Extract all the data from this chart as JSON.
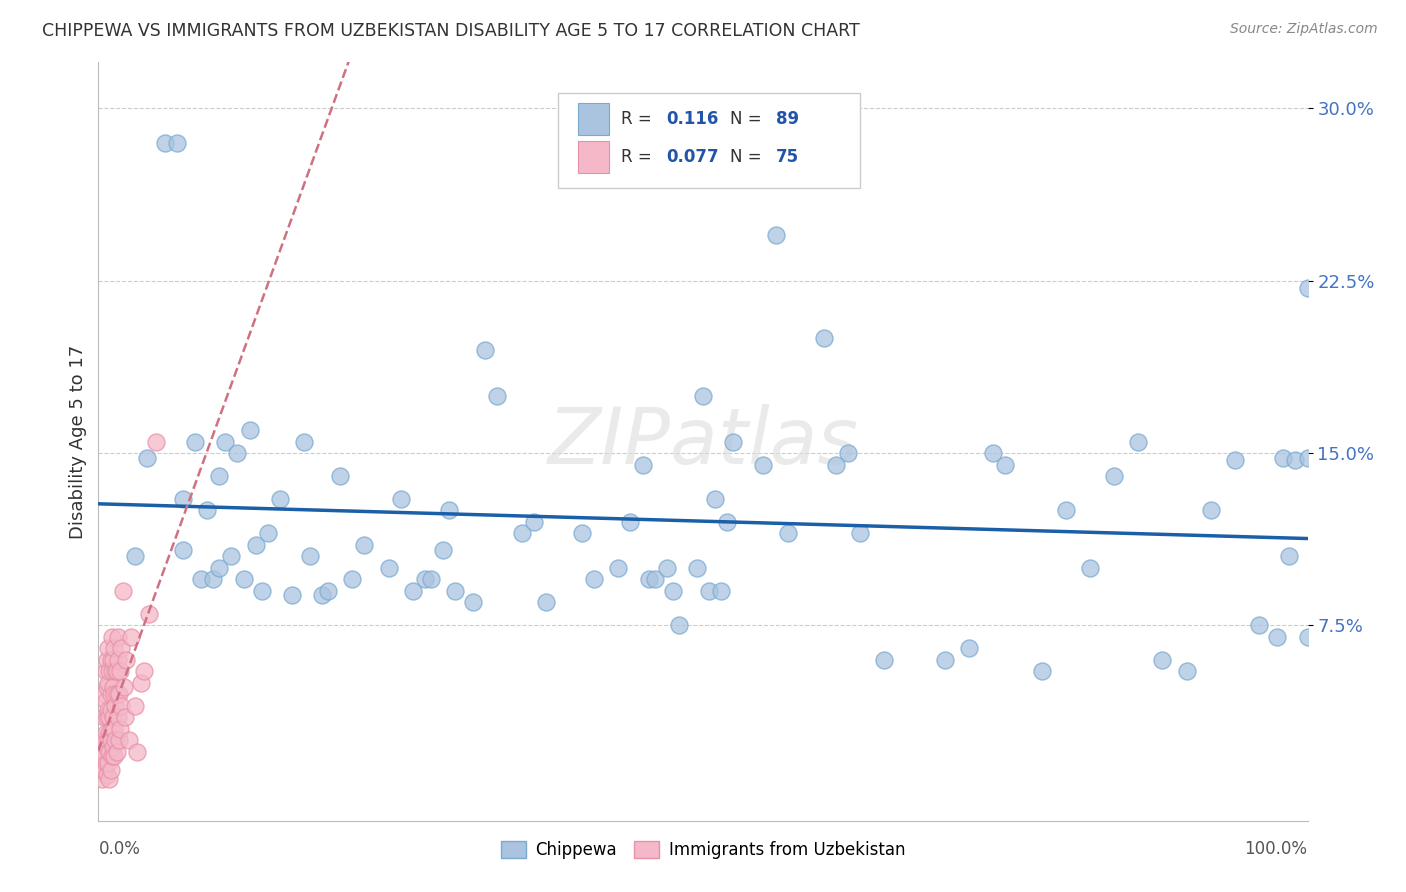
{
  "title": "CHIPPEWA VS IMMIGRANTS FROM UZBEKISTAN DISABILITY AGE 5 TO 17 CORRELATION CHART",
  "source": "Source: ZipAtlas.com",
  "ylabel": "Disability Age 5 to 17",
  "xlim": [
    0.0,
    1.0
  ],
  "ylim": [
    -0.01,
    0.32
  ],
  "chippewa_color": "#aac4e0",
  "uzbekistan_color": "#f4b8c8",
  "chippewa_edge_color": "#7aaad0",
  "uzbekistan_edge_color": "#e890a8",
  "chippewa_line_color": "#1a5fa8",
  "uzbekistan_line_color": "#d07080",
  "background_color": "#ffffff",
  "ytick_color": "#4472c4",
  "chippewa_x": [
    0.03,
    0.04,
    0.055,
    0.065,
    0.07,
    0.07,
    0.08,
    0.085,
    0.09,
    0.095,
    0.1,
    0.1,
    0.105,
    0.11,
    0.115,
    0.12,
    0.125,
    0.13,
    0.135,
    0.14,
    0.15,
    0.16,
    0.17,
    0.175,
    0.185,
    0.19,
    0.2,
    0.21,
    0.22,
    0.24,
    0.25,
    0.26,
    0.27,
    0.275,
    0.285,
    0.29,
    0.295,
    0.31,
    0.32,
    0.33,
    0.35,
    0.36,
    0.37,
    0.4,
    0.41,
    0.43,
    0.44,
    0.45,
    0.455,
    0.46,
    0.47,
    0.475,
    0.48,
    0.495,
    0.5,
    0.505,
    0.51,
    0.515,
    0.52,
    0.525,
    0.55,
    0.56,
    0.57,
    0.6,
    0.61,
    0.62,
    0.63,
    0.65,
    0.7,
    0.72,
    0.74,
    0.75,
    0.78,
    0.8,
    0.82,
    0.84,
    0.86,
    0.88,
    0.9,
    0.92,
    0.94,
    0.96,
    0.975,
    0.98,
    0.985,
    0.99,
    1.0,
    1.0,
    1.0
  ],
  "chippewa_y": [
    0.105,
    0.148,
    0.285,
    0.285,
    0.13,
    0.108,
    0.155,
    0.095,
    0.125,
    0.095,
    0.14,
    0.1,
    0.155,
    0.105,
    0.15,
    0.095,
    0.16,
    0.11,
    0.09,
    0.115,
    0.13,
    0.088,
    0.155,
    0.105,
    0.088,
    0.09,
    0.14,
    0.095,
    0.11,
    0.1,
    0.13,
    0.09,
    0.095,
    0.095,
    0.108,
    0.125,
    0.09,
    0.085,
    0.195,
    0.175,
    0.115,
    0.12,
    0.085,
    0.115,
    0.095,
    0.1,
    0.12,
    0.145,
    0.095,
    0.095,
    0.1,
    0.09,
    0.075,
    0.1,
    0.175,
    0.09,
    0.13,
    0.09,
    0.12,
    0.155,
    0.145,
    0.245,
    0.115,
    0.2,
    0.145,
    0.15,
    0.115,
    0.06,
    0.06,
    0.065,
    0.15,
    0.145,
    0.055,
    0.125,
    0.1,
    0.14,
    0.155,
    0.06,
    0.055,
    0.125,
    0.147,
    0.075,
    0.07,
    0.148,
    0.105,
    0.147,
    0.222,
    0.148,
    0.07
  ],
  "uzbekistan_x": [
    0.002,
    0.003,
    0.003,
    0.004,
    0.004,
    0.004,
    0.005,
    0.005,
    0.005,
    0.005,
    0.005,
    0.006,
    0.006,
    0.006,
    0.006,
    0.007,
    0.007,
    0.007,
    0.007,
    0.007,
    0.008,
    0.008,
    0.008,
    0.008,
    0.008,
    0.009,
    0.009,
    0.009,
    0.009,
    0.009,
    0.01,
    0.01,
    0.01,
    0.01,
    0.01,
    0.011,
    0.011,
    0.011,
    0.011,
    0.012,
    0.012,
    0.012,
    0.012,
    0.013,
    0.013,
    0.013,
    0.013,
    0.014,
    0.014,
    0.014,
    0.015,
    0.015,
    0.015,
    0.016,
    0.016,
    0.016,
    0.017,
    0.017,
    0.018,
    0.018,
    0.019,
    0.019,
    0.02,
    0.021,
    0.022,
    0.023,
    0.025,
    0.027,
    0.03,
    0.032,
    0.035,
    0.038,
    0.042,
    0.048
  ],
  "uzbekistan_y": [
    0.02,
    0.015,
    0.008,
    0.025,
    0.012,
    0.018,
    0.035,
    0.045,
    0.025,
    0.012,
    0.018,
    0.042,
    0.028,
    0.055,
    0.015,
    0.048,
    0.022,
    0.035,
    0.06,
    0.01,
    0.038,
    0.05,
    0.025,
    0.065,
    0.015,
    0.028,
    0.055,
    0.035,
    0.008,
    0.02,
    0.06,
    0.038,
    0.045,
    0.025,
    0.012,
    0.055,
    0.03,
    0.07,
    0.018,
    0.035,
    0.048,
    0.06,
    0.022,
    0.045,
    0.03,
    0.065,
    0.018,
    0.04,
    0.055,
    0.025,
    0.055,
    0.02,
    0.045,
    0.06,
    0.035,
    0.07,
    0.025,
    0.045,
    0.03,
    0.055,
    0.04,
    0.065,
    0.09,
    0.048,
    0.035,
    0.06,
    0.025,
    0.07,
    0.04,
    0.02,
    0.05,
    0.055,
    0.08,
    0.155
  ]
}
